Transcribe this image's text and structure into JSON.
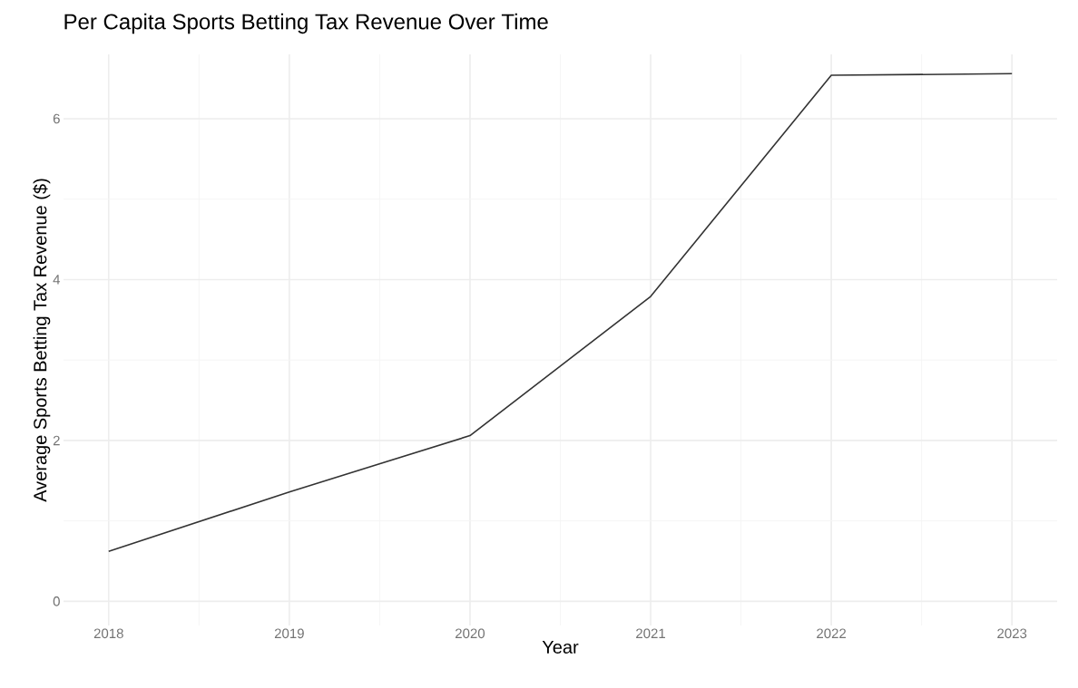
{
  "chart_data": {
    "type": "line",
    "title": "Per Capita Sports Betting Tax Revenue Over Time",
    "xlabel": "Year",
    "ylabel": "Average Sports Betting Tax Revenue ($)",
    "x": [
      2018,
      2019,
      2020,
      2021,
      2022,
      2023
    ],
    "series": [
      {
        "color": "#333333",
        "values": [
          0.62,
          1.36,
          2.06,
          3.79,
          6.54,
          6.56
        ]
      }
    ],
    "xlim": [
      2017.75,
      2023.25
    ],
    "ylim": [
      -0.3,
      6.8
    ],
    "xticks": [
      2018,
      2019,
      2020,
      2021,
      2022,
      2023
    ],
    "yticks": [
      0,
      2,
      4,
      6
    ],
    "grid": true,
    "marker": "none",
    "line_style": "solid"
  }
}
